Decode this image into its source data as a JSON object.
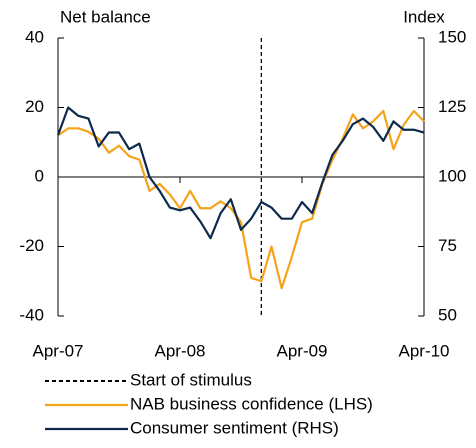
{
  "chart_data": {
    "type": "line",
    "y_label": "Net balance",
    "y2_label": "Index",
    "categories": [
      "Apr-07",
      null,
      null,
      null,
      null,
      null,
      null,
      null,
      null,
      null,
      null,
      null,
      "Apr-08",
      null,
      null,
      null,
      null,
      null,
      null,
      null,
      null,
      null,
      null,
      null,
      "Apr-09",
      null,
      null,
      null,
      null,
      null,
      null,
      null,
      null,
      null,
      null,
      null,
      "Apr-10"
    ],
    "ylim": [
      -40,
      40
    ],
    "yticks": [
      -40,
      -20,
      0,
      20,
      40
    ],
    "y2lim": [
      50,
      150
    ],
    "y2ticks": [
      50,
      75,
      100,
      125,
      150
    ],
    "grid": false,
    "vline": {
      "name": "Start of stimulus",
      "color": "#000000",
      "x_index": 20
    },
    "series": [
      {
        "name": "NAB business confidence (LHS)",
        "color": "#f5a31a",
        "values": [
          12,
          14,
          14,
          13,
          11,
          7,
          9,
          6,
          5,
          -4,
          -2,
          -5,
          -9,
          -4,
          -9,
          -9,
          -7,
          -9,
          -13,
          -29,
          -30,
          -20,
          -32,
          -23,
          -13,
          -12,
          -2,
          5,
          11,
          18,
          14,
          16,
          19,
          8,
          15,
          19,
          16
        ]
      },
      {
        "name": "Consumer sentiment (RHS)",
        "color": "#0d2a4e",
        "axis": "y2",
        "values": [
          115,
          125,
          122,
          121,
          111,
          116,
          116,
          110,
          112,
          100,
          95,
          89,
          88,
          89,
          84,
          78,
          87,
          92,
          81,
          85,
          91,
          89,
          85,
          85,
          91,
          87,
          98,
          108,
          113,
          119,
          121,
          118,
          113,
          120,
          117,
          117,
          116
        ]
      }
    ]
  }
}
